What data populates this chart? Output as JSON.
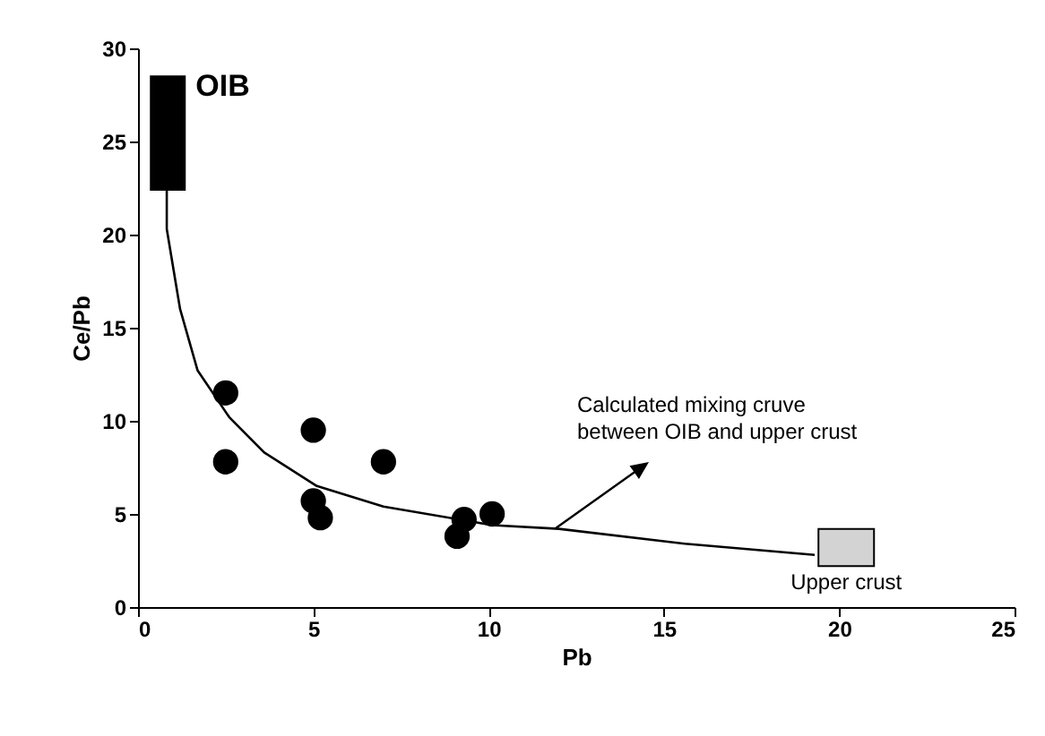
{
  "chart_data": {
    "type": "scatter",
    "xlabel": "Pb",
    "ylabel": "Ce/Pb",
    "xlim": [
      0,
      25
    ],
    "xticks": [
      0,
      5,
      10,
      15,
      20,
      25
    ],
    "ylim": [
      0,
      30
    ],
    "yticks": [
      0,
      5,
      10,
      15,
      20,
      25,
      30
    ],
    "grid": false,
    "marker": "circle",
    "series": [
      {
        "type": "bar",
        "name": "OIB",
        "color": "#000000",
        "x": [
          0.85
        ],
        "base": [
          22.4
        ],
        "values": [
          6.1
        ]
      },
      {
        "type": "bar",
        "name": "Upper crust",
        "color": "#d3d3d3",
        "x": [
          20.2
        ],
        "base": [
          2.2
        ],
        "values": [
          2.0
        ]
      },
      {
        "color": "#000000",
        "x": [
          2.5,
          2.5,
          5.0,
          5.0,
          5.2,
          7.0,
          9.3,
          9.1,
          10.1
        ],
        "values": [
          11.5,
          7.8,
          9.5,
          5.7,
          4.8,
          7.8,
          4.7,
          3.8,
          5.0
        ]
      },
      {
        "type": "line",
        "marker": "none",
        "color": "#000000",
        "x": [
          0.82,
          0.82,
          1.2,
          1.7,
          2.6,
          3.6,
          5.1,
          7.0,
          10.1,
          12.0,
          15.6,
          19.3
        ],
        "values": [
          22.4,
          20.3,
          16.0,
          12.7,
          10.2,
          8.3,
          6.5,
          5.4,
          4.4,
          4.2,
          3.4,
          2.8
        ]
      }
    ],
    "annotations": [
      "Calculated mixing cruve\nbetween OIB and upper crust"
    ]
  }
}
